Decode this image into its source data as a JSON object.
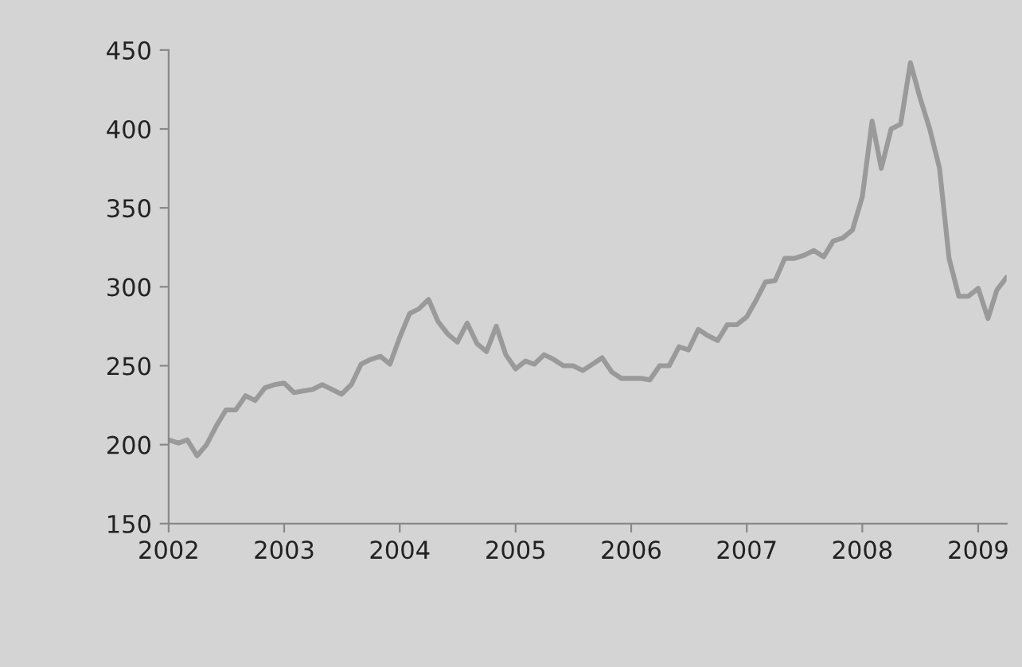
{
  "chart_data": {
    "type": "line",
    "x": [
      "2002-01",
      "2002-02",
      "2002-03",
      "2002-04",
      "2002-05",
      "2002-06",
      "2002-07",
      "2002-08",
      "2002-09",
      "2002-10",
      "2002-11",
      "2002-12",
      "2003-01",
      "2003-02",
      "2003-03",
      "2003-04",
      "2003-05",
      "2003-06",
      "2003-07",
      "2003-08",
      "2003-09",
      "2003-10",
      "2003-11",
      "2003-12",
      "2004-01",
      "2004-02",
      "2004-03",
      "2004-04",
      "2004-05",
      "2004-06",
      "2004-07",
      "2004-08",
      "2004-09",
      "2004-10",
      "2004-11",
      "2004-12",
      "2005-01",
      "2005-02",
      "2005-03",
      "2005-04",
      "2005-05",
      "2005-06",
      "2005-07",
      "2005-08",
      "2005-09",
      "2005-10",
      "2005-11",
      "2005-12",
      "2006-01",
      "2006-02",
      "2006-03",
      "2006-04",
      "2006-05",
      "2006-06",
      "2006-07",
      "2006-08",
      "2006-09",
      "2006-10",
      "2006-11",
      "2006-12",
      "2007-01",
      "2007-02",
      "2007-03",
      "2007-04",
      "2007-05",
      "2007-06",
      "2007-07",
      "2007-08",
      "2007-09",
      "2007-10",
      "2007-11",
      "2007-12",
      "2008-01",
      "2008-02",
      "2008-03",
      "2008-04",
      "2008-05",
      "2008-06",
      "2008-07",
      "2008-08",
      "2008-09",
      "2008-10",
      "2008-11",
      "2008-12",
      "2009-01",
      "2009-02",
      "2009-03",
      "2009-04"
    ],
    "series": [
      {
        "color": "#9a9a9a",
        "values": [
          203,
          201,
          203,
          193,
          200,
          212,
          222,
          222,
          231,
          228,
          236,
          238,
          239,
          233,
          234,
          235,
          238,
          235,
          232,
          238,
          251,
          254,
          256,
          251,
          268,
          283,
          286,
          292,
          278,
          270,
          265,
          277,
          264,
          259,
          275,
          257,
          248,
          253,
          251,
          257,
          254,
          250,
          250,
          247,
          251,
          255,
          246,
          242,
          242,
          242,
          241,
          250,
          250,
          262,
          260,
          273,
          269,
          266,
          276,
          276,
          281,
          292,
          303,
          304,
          318,
          318,
          320,
          323,
          319,
          329,
          331,
          336,
          357,
          405,
          375,
          400,
          403,
          442,
          420,
          400,
          375,
          318,
          294,
          294,
          299,
          280,
          298,
          306
        ]
      }
    ],
    "xlim": [
      "2002-01",
      "2009-04"
    ],
    "xticks": [
      "2002",
      "2003",
      "2004",
      "2005",
      "2006",
      "2007",
      "2008",
      "2009"
    ],
    "ylim": [
      150,
      450
    ],
    "yticks": [
      150,
      200,
      250,
      300,
      350,
      400,
      450
    ],
    "grid": false,
    "legend": false,
    "marker": "none",
    "line_style": "solid"
  }
}
